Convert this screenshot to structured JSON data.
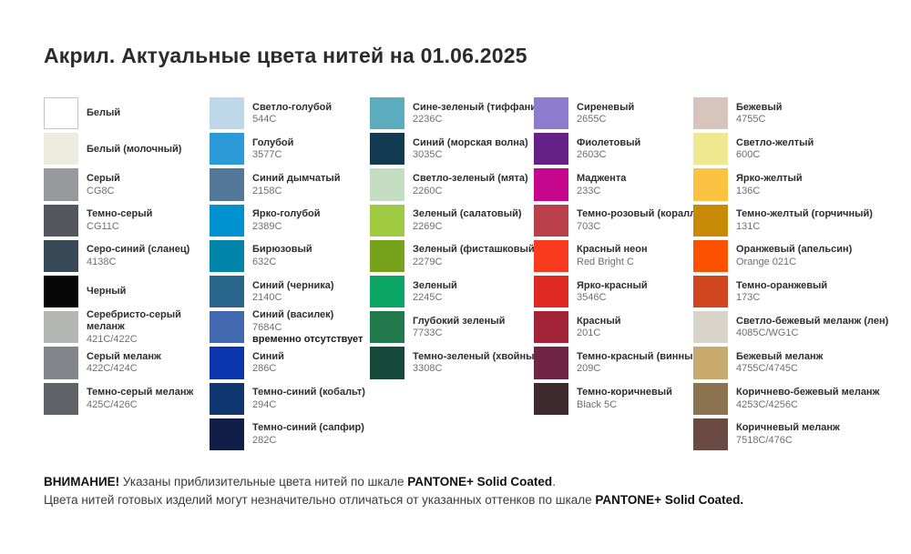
{
  "page": {
    "title": "Акрил. Актуальные цвета нитей на 01.06.2025"
  },
  "columns": [
    {
      "items": [
        {
          "name": "Белый",
          "code": "",
          "hex": "#FFFFFF",
          "border": true
        },
        {
          "name": "Белый (молочный)",
          "code": "",
          "hex": "#EBECDE"
        },
        {
          "name": "Серый",
          "code": "CG8C",
          "hex": "#97999C"
        },
        {
          "name": "Темно-серый",
          "code": "CG11C",
          "hex": "#53575D"
        },
        {
          "name": "Серо-синий (сланец)",
          "code": "4138C",
          "hex": "#374856"
        },
        {
          "name": "Черный",
          "code": "",
          "hex": "#060606"
        },
        {
          "name": "Серебристо-серый\nмеланж",
          "code": "421C/422C",
          "hex": "#B4B6B4"
        },
        {
          "name": "Серый меланж",
          "code": "422C/424C",
          "hex": "#828589"
        },
        {
          "name": "Темно-серый меланж",
          "code": "425C/426C",
          "hex": "#5F6367"
        }
      ]
    },
    {
      "items": [
        {
          "name": "Светло-голубой",
          "code": "544C",
          "hex": "#BED7E9"
        },
        {
          "name": "Голубой",
          "code": "3577C",
          "hex": "#2B9AD6"
        },
        {
          "name": "Синий дымчатый",
          "code": "2158C",
          "hex": "#53789A"
        },
        {
          "name": "Ярко-голубой",
          "code": "2389C",
          "hex": "#0092D0"
        },
        {
          "name": "Бирюзовый",
          "code": "632C",
          "hex": "#0084AA"
        },
        {
          "name": "Синий (черника)",
          "code": "2140C",
          "hex": "#29668C"
        },
        {
          "name": "Синий (василек)",
          "code": "7684C",
          "hex": "#4268B0",
          "note": "временно отсутствует"
        },
        {
          "name": "Синий",
          "code": "286C",
          "hex": "#0A35AC"
        },
        {
          "name": "Темно-синий (кобальт)",
          "code": "294C",
          "hex": "#10376F"
        },
        {
          "name": "Темно-синий (сапфир)",
          "code": "282C",
          "hex": "#111F48"
        }
      ]
    },
    {
      "items": [
        {
          "name": "Сине-зеленый (тиффани)",
          "code": "2236C",
          "hex": "#5BACBC"
        },
        {
          "name": "Синий (морская волна)",
          "code": "3035C",
          "hex": "#123A50"
        },
        {
          "name": "Светло-зеленый (мята)",
          "code": "2260C",
          "hex": "#C5DEC3"
        },
        {
          "name": "Зеленый (салатовый)",
          "code": "2269C",
          "hex": "#9FCA41"
        },
        {
          "name": "Зеленый (фисташковый)",
          "code": "2279C",
          "hex": "#77A21B"
        },
        {
          "name": "Зеленый",
          "code": "2245C",
          "hex": "#0CA765"
        },
        {
          "name": "Глубокий зеленый",
          "code": "7733C",
          "hex": "#21794C"
        },
        {
          "name": "Темно-зеленый (хвойный)",
          "code": "3308C",
          "hex": "#15493A"
        }
      ]
    },
    {
      "items": [
        {
          "name": "Сиреневый",
          "code": "2655C",
          "hex": "#8D7BCE"
        },
        {
          "name": "Фиолетовый",
          "code": "2603C",
          "hex": "#662189"
        },
        {
          "name": "Маджента",
          "code": "233C",
          "hex": "#C6078D"
        },
        {
          "name": "Темно-розовый (коралл)",
          "code": "703C",
          "hex": "#B93F4B"
        },
        {
          "name": "Красный неон",
          "code": "Red Bright C",
          "hex": "#F93B20"
        },
        {
          "name": "Ярко-красный",
          "code": "3546C",
          "hex": "#DF2A24"
        },
        {
          "name": "Красный",
          "code": "201C",
          "hex": "#A22338"
        },
        {
          "name": "Темно-красный (винный)",
          "code": "209C",
          "hex": "#6F2443"
        },
        {
          "name": "Темно-коричневый",
          "code": "Black 5C",
          "hex": "#3E2A2E"
        }
      ]
    },
    {
      "items": [
        {
          "name": "Бежевый",
          "code": "4755C",
          "hex": "#D7C5BB"
        },
        {
          "name": "Светло-желтый",
          "code": "600C",
          "hex": "#F0E891"
        },
        {
          "name": "Ярко-желтый",
          "code": "136C",
          "hex": "#FCC342"
        },
        {
          "name": "Темно-желтый (горчичный)",
          "code": "131C",
          "hex": "#C98B07"
        },
        {
          "name": "Оранжевый (апельсин)",
          "code": "Orange 021C",
          "hex": "#FB5101"
        },
        {
          "name": "Темно-оранжевый",
          "code": "173C",
          "hex": "#D2461F"
        },
        {
          "name": "Светло-бежевый меланж (лен)",
          "code": "4085C/WG1C",
          "hex": "#D9D4CB"
        },
        {
          "name": "Бежевый меланж",
          "code": "4755C/4745C",
          "hex": "#C8A96E"
        },
        {
          "name": "Коричнево-бежевый меланж",
          "code": "4253C/4256C",
          "hex": "#8C7350"
        },
        {
          "name": "Коричневый меланж",
          "code": "7518C/476C",
          "hex": "#6B4A44"
        }
      ]
    }
  ],
  "footer": {
    "line1_bold1": "ВНИМАНИЕ!",
    "line1_text": " Указаны приблизительные цвета нитей по шкале ",
    "line1_bold2": "PANTONE+ Solid Coated",
    "line1_end": ".",
    "line2_text": "Цвета нитей готовых изделий могут незначительно отличаться от указанных оттенков по шкале ",
    "line2_bold": "PANTONE+ Solid Coated."
  }
}
